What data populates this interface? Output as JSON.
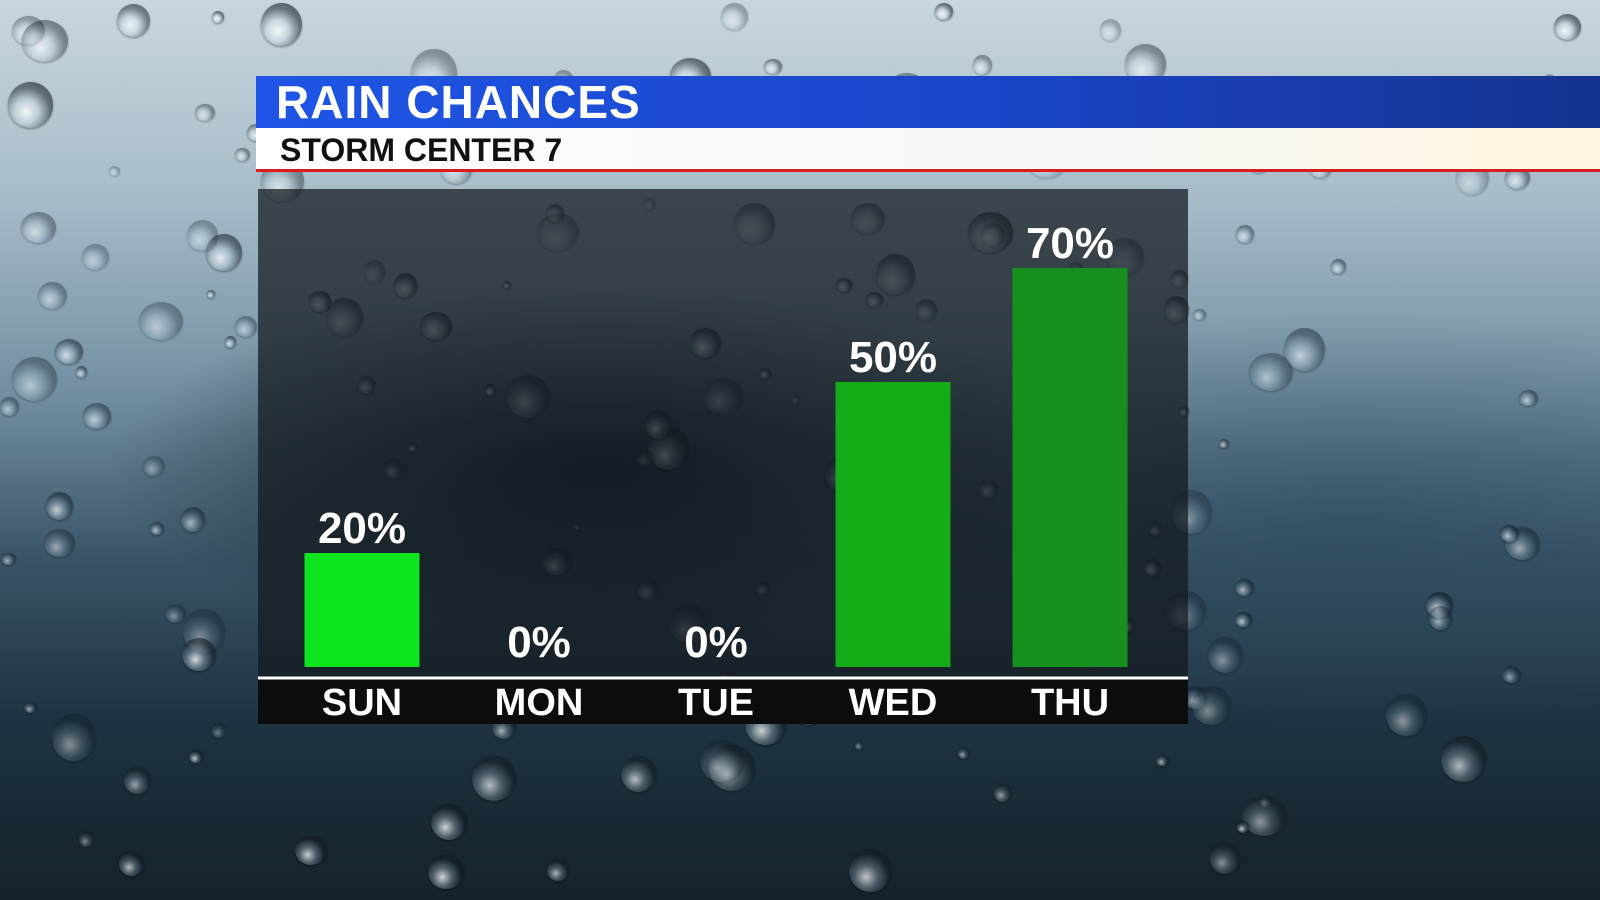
{
  "title": "RAIN CHANCES",
  "subtitle": "STORM CENTER 7",
  "chart_data": {
    "type": "bar",
    "categories": [
      "SUN",
      "MON",
      "TUE",
      "WED",
      "THU"
    ],
    "values": [
      20,
      0,
      0,
      50,
      70
    ],
    "data_labels": [
      "20%",
      "0%",
      "0%",
      "50%",
      "70%"
    ],
    "ylim": [
      0,
      100
    ],
    "grid": false,
    "legend": "none",
    "colors": [
      "#0de61e",
      "#12c41a",
      "#12c41a",
      "#14ad17",
      "#168f1e"
    ]
  }
}
